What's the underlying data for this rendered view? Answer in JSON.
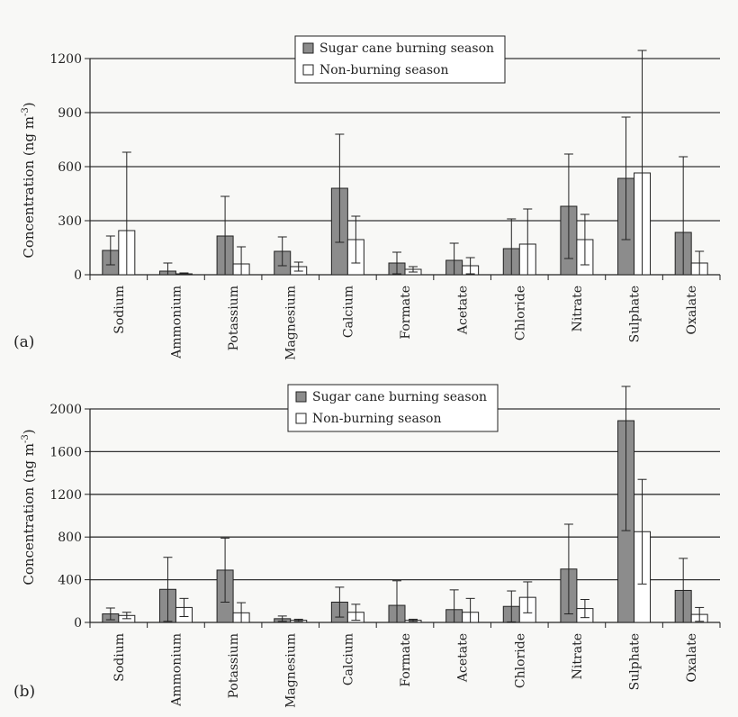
{
  "colors": {
    "burning": "#8c8c8c",
    "nonburning": "#ffffff",
    "stroke": "#222222",
    "grid": "#333333",
    "background": "#f8f8f6"
  },
  "chart_data": [
    {
      "type": "bar",
      "panel_label": "(a)",
      "ylabel_main": "Concentration (ng m",
      "ylabel_sup": "-3",
      "ylabel_end": ")",
      "ylim": [
        0,
        1200
      ],
      "yticks": [
        0,
        300,
        600,
        900,
        1200
      ],
      "ytick_labels": [
        "0",
        "300",
        "600",
        "900",
        "1200"
      ],
      "grid": true,
      "legend_position": "top-center",
      "categories": [
        "Sodium",
        "Ammonium",
        "Potassium",
        "Magnesium",
        "Calcium",
        "Formate",
        "Acetate",
        "Chloride",
        "Nitrate",
        "Sulphate",
        "Oxalate"
      ],
      "series": [
        {
          "name": "Sugar cane burning season",
          "values": [
            135,
            20,
            215,
            130,
            480,
            65,
            80,
            145,
            380,
            535,
            235
          ],
          "errors": [
            80,
            45,
            220,
            80,
            300,
            60,
            95,
            165,
            290,
            340,
            420
          ]
        },
        {
          "name": "Non-burning season",
          "values": [
            245,
            5,
            60,
            45,
            195,
            30,
            50,
            170,
            195,
            565,
            65
          ],
          "errors": [
            435,
            5,
            95,
            25,
            130,
            15,
            45,
            195,
            140,
            680,
            65
          ]
        }
      ]
    },
    {
      "type": "bar",
      "panel_label": "(b)",
      "ylabel_main": "Concentration (ng m",
      "ylabel_sup": "-3",
      "ylabel_end": ")",
      "ylim": [
        0,
        2000
      ],
      "yticks": [
        0,
        400,
        800,
        1200,
        1600,
        2000
      ],
      "ytick_labels": [
        "0",
        "400",
        "800",
        "1200",
        "1600",
        "2000"
      ],
      "grid": true,
      "legend_position": "top-center",
      "categories": [
        "Sodium",
        "Ammonium",
        "Potassium",
        "Magnesium",
        "Calcium",
        "Formate",
        "Acetate",
        "Chloride",
        "Nitrate",
        "Sulphate",
        "Oxalate"
      ],
      "series": [
        {
          "name": "Sugar cane burning season",
          "values": [
            80,
            310,
            490,
            35,
            190,
            160,
            120,
            150,
            500,
            1890,
            300
          ],
          "errors": [
            55,
            300,
            300,
            25,
            140,
            230,
            185,
            145,
            420,
            1030,
            300
          ]
        },
        {
          "name": "Non-burning season",
          "values": [
            65,
            140,
            90,
            20,
            95,
            20,
            95,
            235,
            130,
            850,
            75
          ],
          "errors": [
            30,
            85,
            95,
            10,
            75,
            10,
            130,
            145,
            85,
            490,
            65
          ]
        }
      ]
    }
  ]
}
